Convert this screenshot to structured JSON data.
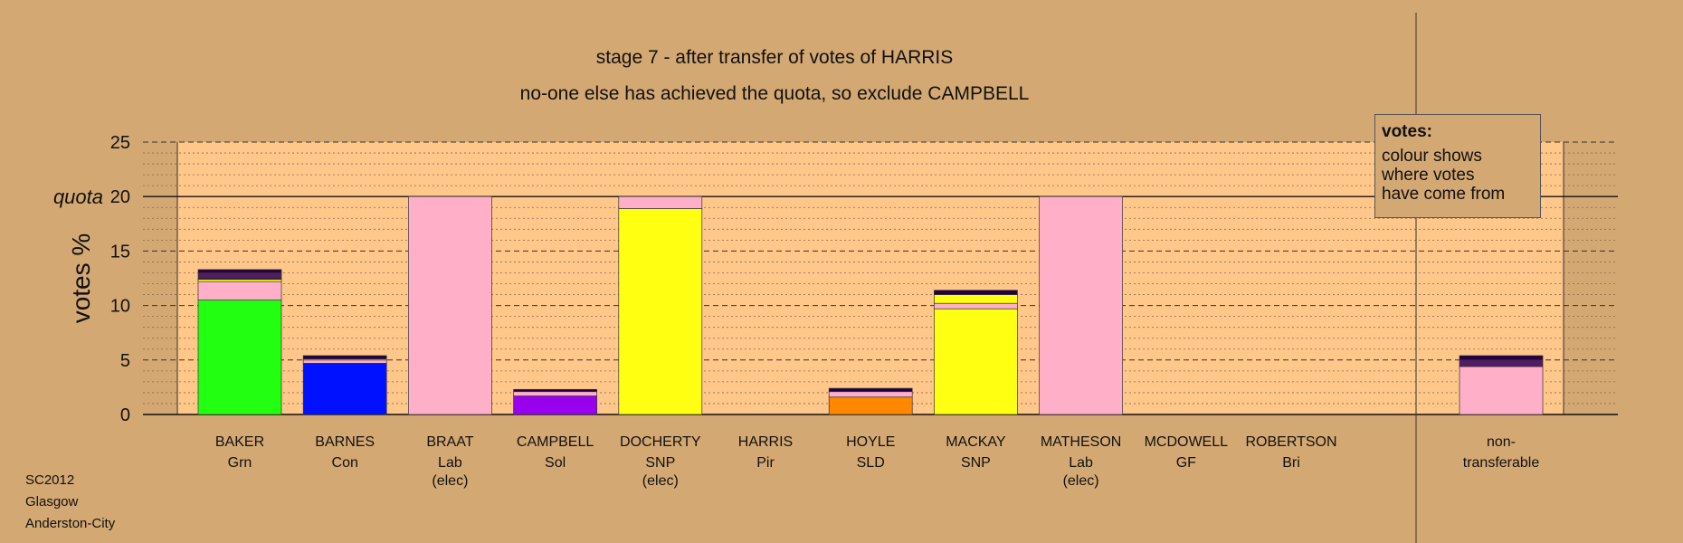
{
  "title_lines": [
    "stage 7 - after transfer of votes of HARRIS",
    "no-one else has achieved the quota, so exclude CAMPBELL"
  ],
  "legend": {
    "title": "votes:",
    "text": "colour shows\nwhere votes\nhave come from"
  },
  "footer": [
    "SC2012",
    "Glasgow",
    "Anderston-City"
  ],
  "chart_data": {
    "type": "bar",
    "stacked": true,
    "ylabel": "votes %",
    "ylim": [
      0,
      25
    ],
    "yticks": [
      0,
      5,
      10,
      15,
      20,
      25
    ],
    "quota": 20,
    "quota_label": "quota",
    "grid": true,
    "colors": {
      "Grn": "#22ff11",
      "Con": "#0011ff",
      "Lab": "#ffb0c8",
      "Sol": "#9900ee",
      "SNP": "#ffff11",
      "SLD": "#ff8800",
      "Pir": "#551a66",
      "Bri": "#220044"
    },
    "categories": [
      {
        "name": "BAKER",
        "party": "Grn",
        "note": "",
        "segments": [
          {
            "from": "Grn",
            "value": 10.5
          },
          {
            "from": "Lab",
            "value": 1.7
          },
          {
            "from": "SNP",
            "value": 0.2
          },
          {
            "from": "Bri",
            "value": 0.1
          },
          {
            "from": "Pir",
            "value": 0.5
          },
          {
            "from": "Bri",
            "value": 0.3
          }
        ]
      },
      {
        "name": "BARNES",
        "party": "Con",
        "note": "",
        "segments": [
          {
            "from": "Con",
            "value": 4.7
          },
          {
            "from": "Lab",
            "value": 0.3
          },
          {
            "from": "SNP",
            "value": 0.1
          },
          {
            "from": "Bri",
            "value": 0.3
          }
        ]
      },
      {
        "name": "BRAAT",
        "party": "Lab",
        "note": "(elec)",
        "segments": [
          {
            "from": "Lab",
            "value": 20
          }
        ]
      },
      {
        "name": "CAMPBELL",
        "party": "Sol",
        "note": "",
        "segments": [
          {
            "from": "Sol",
            "value": 1.7
          },
          {
            "from": "Lab",
            "value": 0.4
          },
          {
            "from": "Bri",
            "value": 0.2
          }
        ]
      },
      {
        "name": "DOCHERTY",
        "party": "SNP",
        "note": "(elec)",
        "segments": [
          {
            "from": "SNP",
            "value": 18.9
          },
          {
            "from": "Lab",
            "value": 1.1
          }
        ]
      },
      {
        "name": "HARRIS",
        "party": "Pir",
        "note": "",
        "segments": []
      },
      {
        "name": "HOYLE",
        "party": "SLD",
        "note": "",
        "segments": [
          {
            "from": "SLD",
            "value": 1.6
          },
          {
            "from": "Lab",
            "value": 0.5
          },
          {
            "from": "Bri",
            "value": 0.3
          }
        ]
      },
      {
        "name": "MACKAY",
        "party": "SNP",
        "note": "",
        "segments": [
          {
            "from": "SNP",
            "value": 9.7
          },
          {
            "from": "Lab",
            "value": 0.5
          },
          {
            "from": "SNP",
            "value": 0.8
          },
          {
            "from": "Bri",
            "value": 0.4
          }
        ]
      },
      {
        "name": "MATHESON",
        "party": "Lab",
        "note": "(elec)",
        "segments": [
          {
            "from": "Lab",
            "value": 20
          }
        ]
      },
      {
        "name": "MCDOWELL",
        "party": "GF",
        "note": "",
        "segments": []
      },
      {
        "name": "ROBERTSON",
        "party": "Bri",
        "note": "",
        "segments": []
      }
    ],
    "nontransferable": {
      "label_lines": [
        "non-",
        "transferable"
      ],
      "segments": [
        {
          "from": "Lab",
          "value": 4.4
        },
        {
          "from": "Pir",
          "value": 0.6
        },
        {
          "from": "Bri",
          "value": 0.4
        }
      ]
    }
  }
}
